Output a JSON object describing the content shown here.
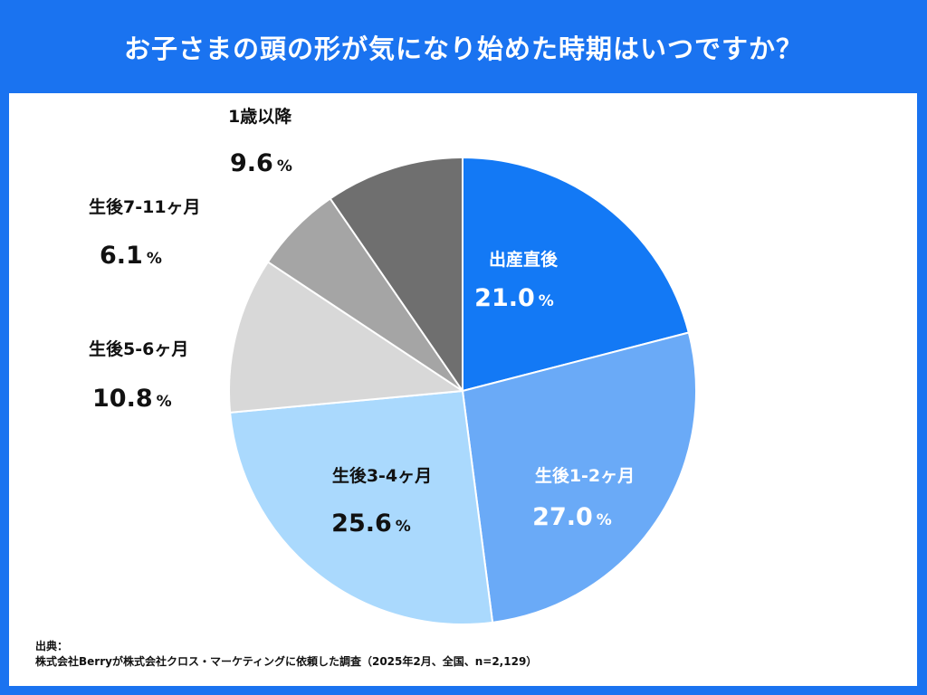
{
  "header": {
    "title": "お子さまの頭の形が気になり始めた時期はいつですか？"
  },
  "chart_data": {
    "type": "pie",
    "title": "お子さまの頭の形が気になり始めた時期はいつですか？",
    "unit": "%",
    "slices": [
      {
        "label": "出産直後",
        "value": 21.0,
        "display": "21.0",
        "color": "#1379f5",
        "text_color": "#ffffff"
      },
      {
        "label": "生後1-2ヶ月",
        "value": 27.0,
        "display": "27.0",
        "color": "#6aaaf7",
        "text_color": "#ffffff"
      },
      {
        "label": "生後3-4ヶ月",
        "value": 25.6,
        "display": "25.6",
        "color": "#aad9fd",
        "text_color": "#111111"
      },
      {
        "label": "生後5-6ヶ月",
        "value": 10.8,
        "display": "10.8",
        "color": "#d8d8d8",
        "text_color": "#111111"
      },
      {
        "label": "生後7-11ヶ月",
        "value": 6.1,
        "display": "6.1",
        "color": "#a5a5a5",
        "text_color": "#111111"
      },
      {
        "label": "1歳以降",
        "value": 9.6,
        "display": "9.6",
        "color": "#6f6f6f",
        "text_color": "#111111"
      }
    ]
  },
  "source": {
    "heading": "出典：",
    "text": "株式会社Berryが株式会社クロス・マーケティングに依頼した調査（2025年2月、全国、n=2,129）"
  }
}
